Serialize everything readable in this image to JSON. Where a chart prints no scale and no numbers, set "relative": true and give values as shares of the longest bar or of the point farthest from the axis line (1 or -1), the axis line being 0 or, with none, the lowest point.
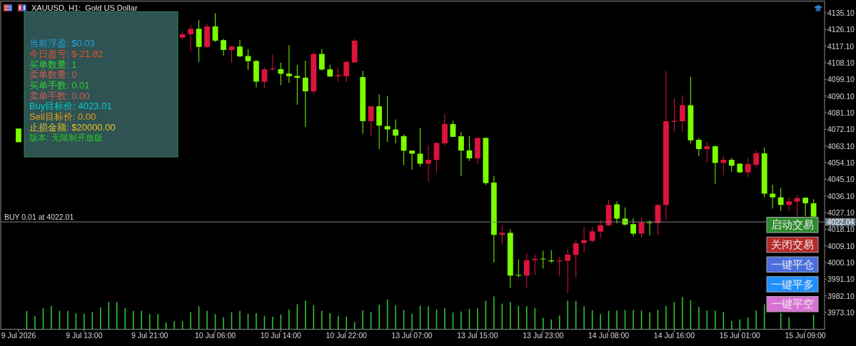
{
  "chart_data": [
    {
      "type": "candlestick",
      "title": "XAUUSD, H1:  Gold US Dollar",
      "categories": [
        "9 Jul 2026",
        null,
        null,
        null,
        null,
        null,
        null,
        null,
        "9 Jul 13:00",
        null,
        null,
        null,
        null,
        null,
        null,
        null,
        "9 Jul 21:00",
        null,
        null,
        null,
        null,
        null,
        null,
        null,
        "10 Jul 06:00",
        null,
        null,
        null,
        null,
        null,
        null,
        null,
        "10 Jul 14:00",
        null,
        null,
        null,
        null,
        null,
        null,
        null,
        "10 Jul 22:00",
        null,
        null,
        null,
        null,
        null,
        null,
        null,
        "13 Jul 07:00",
        null,
        null,
        null,
        null,
        null,
        null,
        null,
        "13 Jul 15:00",
        null,
        null,
        null,
        null,
        null,
        null,
        null,
        "13 Jul 23:00",
        null,
        null,
        null,
        null,
        null,
        null,
        null,
        "14 Jul 08:00",
        null,
        null,
        null,
        null,
        null,
        null,
        null,
        "14 Jul 16:00",
        null,
        null,
        null,
        null,
        null,
        null,
        null,
        "15 Jul 01:00",
        null,
        null,
        null,
        null,
        null,
        null,
        null,
        "15 Jul 09:00",
        null
      ],
      "ohlc": [
        [
          4065.1,
          4072.5,
          4065.1,
          4072.5
        ],
        null,
        null,
        null,
        null,
        null,
        null,
        null,
        null,
        null,
        null,
        null,
        null,
        null,
        null,
        null,
        null,
        null,
        null,
        null,
        [
          4123.5,
          4125.1,
          4121.0,
          4121.7
        ],
        [
          4126.4,
          4128.6,
          4114.2,
          4123.5
        ],
        [
          4116.6,
          4131.2,
          4108.5,
          4126.4
        ],
        [
          4127.7,
          4129.3,
          4115.8,
          4116.6
        ],
        [
          4120.0,
          4134.8,
          4119.3,
          4127.7
        ],
        [
          4115.0,
          4121.0,
          4111.9,
          4120.3
        ],
        [
          4116.8,
          4117.2,
          4108.1,
          4115.0
        ],
        [
          4111.5,
          4120.3,
          4111.0,
          4116.8
        ],
        [
          4108.9,
          4115.4,
          4104.2,
          4111.7
        ],
        [
          4097.9,
          4109.5,
          4094.7,
          4109.0
        ],
        [
          4104.5,
          4105.6,
          4094.1,
          4097.8
        ],
        [
          4104.9,
          4112.6,
          4104.1,
          4104.4
        ],
        [
          4102.1,
          4108.1,
          4095.9,
          4104.6
        ],
        [
          4100.8,
          4117.5,
          4097.2,
          4102.2
        ],
        [
          4099.9,
          4106.8,
          4085.4,
          4100.9
        ],
        [
          4092.6,
          4109.1,
          4073.4,
          4100.0
        ],
        [
          4112.8,
          4113.6,
          4091.2,
          4092.6
        ],
        [
          4104.4,
          4115.5,
          4103.8,
          4112.8
        ],
        [
          4100.6,
          4106.9,
          4100.5,
          4104.5
        ],
        [
          4101.4,
          4105.3,
          4097.8,
          4100.8
        ],
        [
          4108.5,
          4109.4,
          4097.6,
          4100.8
        ],
        [
          4120.0,
          4121.0,
          4108.1,
          4108.2
        ],
        [
          4076.5,
          4103.7,
          4069.7,
          4100.3
        ],
        [
          4084.5,
          4084.5,
          4068.4,
          4076.5
        ],
        [
          4074.1,
          4091.0,
          4061.3,
          4084.5
        ],
        [
          4072.0,
          4089.9,
          4065.2,
          4073.8
        ],
        [
          4068.7,
          4077.4,
          4064.5,
          4072.0
        ],
        [
          4060.5,
          4069.2,
          4052.7,
          4068.4
        ],
        [
          4058.9,
          4060.6,
          4050.1,
          4060.6
        ],
        [
          4053.5,
          4072.9,
          4052.0,
          4058.9
        ],
        [
          4055.6,
          4063.5,
          4043.7,
          4053.5
        ],
        [
          4064.7,
          4065.1,
          4048.8,
          4055.5
        ],
        [
          4074.9,
          4080.6,
          4063.2,
          4064.5
        ],
        [
          4068.0,
          4076.6,
          4068.0,
          4074.9
        ],
        [
          4060.6,
          4070.6,
          4046.7,
          4068.3
        ],
        [
          4056.4,
          4068.3,
          4055.0,
          4060.7
        ],
        [
          4067.4,
          4067.7,
          4053.3,
          4056.4
        ],
        [
          4043.0,
          4067.7,
          4042.0,
          4067.4
        ],
        [
          4015.0,
          4046.9,
          4000.0,
          4043.3
        ],
        [
          4016.1,
          4020.3,
          4009.9,
          4015.0
        ],
        [
          3993.0,
          4018.0,
          3986.3,
          4016.1
        ],
        [
          3993.0,
          4001.8,
          3992.0,
          3993.4
        ],
        [
          4001.3,
          4005.2,
          3986.6,
          3993.0
        ],
        [
          4002.0,
          4004.5,
          3993.4,
          4001.3
        ],
        [
          4002.0,
          4006.5,
          3996.8,
          4002.2
        ],
        [
          4000.7,
          4006.7,
          3999.8,
          4001.2
        ],
        [
          4001.2,
          4003.2,
          3992.6,
          4000.7
        ],
        [
          4004.3,
          4007.4,
          3983.4,
          4001.0
        ],
        [
          4010.4,
          4012.0,
          3992.1,
          4004.2
        ],
        [
          4012.2,
          4019.3,
          4005.5,
          4010.6
        ],
        [
          4016.9,
          4019.2,
          4010.9,
          4011.8
        ],
        [
          4020.2,
          4023.1,
          4013.3,
          4016.7
        ],
        [
          4031.2,
          4034.0,
          4019.7,
          4020.2
        ],
        [
          4023.8,
          4033.1,
          4021.2,
          4031.5
        ],
        [
          4020.6,
          4029.8,
          4019.9,
          4023.8
        ],
        [
          4015.7,
          4024.0,
          4014.2,
          4020.8
        ],
        [
          4021.7,
          4024.4,
          4013.5,
          4015.7
        ],
        [
          4021.6,
          4022.9,
          4014.8,
          4021.8
        ],
        [
          4031.2,
          4031.7,
          4015.0,
          4021.4
        ],
        [
          4076.4,
          4103.6,
          4023.1,
          4031.2
        ],
        [
          4076.6,
          4088.8,
          4070.9,
          4076.1
        ],
        [
          4085.1,
          4090.5,
          4070.6,
          4076.4
        ],
        [
          4066.1,
          4100.5,
          4064.5,
          4085.1
        ],
        [
          4061.4,
          4067.4,
          4057.5,
          4066.4
        ],
        [
          4062.9,
          4065.2,
          4054.2,
          4061.4
        ],
        [
          4053.9,
          4063.3,
          4042.6,
          4062.9
        ],
        [
          4055.6,
          4057.5,
          4047.3,
          4053.9
        ],
        [
          4052.4,
          4056.5,
          4049.1,
          4055.6
        ],
        [
          4048.8,
          4053.5,
          4048.5,
          4053.5
        ],
        [
          4053.3,
          4056.5,
          4046.2,
          4048.8
        ],
        [
          4059.1,
          4060.7,
          4051.0,
          4052.9
        ],
        [
          4037.3,
          4062.3,
          4035.3,
          4059.1
        ],
        [
          4035.3,
          4042.1,
          4029.2,
          4037.3
        ],
        [
          4031.2,
          4040.5,
          4027.9,
          4035.3
        ],
        [
          4033.1,
          4035.3,
          4027.9,
          4031.2
        ],
        [
          4034.9,
          4036.6,
          4024.9,
          4033.0
        ],
        [
          4032.1,
          4035.3,
          4025.1,
          4035.1
        ],
        [
          4024.9,
          4034.3,
          4024.9,
          4032.1
        ]
      ],
      "colors": [
        "#7cfc00",
        null,
        null,
        null,
        null,
        null,
        null,
        null,
        null,
        null,
        null,
        null,
        null,
        null,
        null,
        null,
        null,
        null,
        null,
        null,
        "#dc143c",
        "#dc143c",
        "#7cfc00",
        "#dc143c",
        "#7cfc00",
        "#7cfc00",
        "#dc143c",
        "#7cfc00",
        "#7cfc00",
        "#7cfc00",
        "#dc143c",
        "#dc143c",
        "#7cfc00",
        "#7cfc00",
        "#7cfc00",
        "#7cfc00",
        "#dc143c",
        "#7cfc00",
        "#7cfc00",
        "#dc143c",
        "#dc143c",
        "#dc143c",
        "#7cfc00",
        "#dc143c",
        "#7cfc00",
        "#7cfc00",
        "#7cfc00",
        "#7cfc00",
        "#7cfc00",
        "#7cfc00",
        "#dc143c",
        "#dc143c",
        "#dc143c",
        "#7cfc00",
        "#7cfc00",
        "#7cfc00",
        "#dc143c",
        "#7cfc00",
        "#7cfc00",
        "#dc143c",
        "#7cfc00",
        "#7cfc00",
        "#dc143c",
        "#dc143c",
        "#7cfc00",
        "#7cfc00",
        "#dc143c",
        "#dc143c",
        "#dc143c",
        "#dc143c",
        "#dc143c",
        "#dc143c",
        "#dc143c",
        "#7cfc00",
        "#7cfc00",
        "#7cfc00",
        "#dc143c",
        "#7cfc00",
        "#dc143c",
        "#dc143c",
        "#dc143c",
        "#dc143c",
        "#7cfc00",
        "#7cfc00",
        "#dc143c",
        "#7cfc00",
        "#dc143c",
        "#7cfc00",
        "#7cfc00",
        "#dc143c",
        "#dc143c",
        "#7cfc00",
        "#7cfc00",
        "#7cfc00",
        "#dc143c",
        "#dc143c",
        "#7cfc00",
        "#7cfc00"
      ],
      "ylim": [
        3964,
        4141.4
      ],
      "yticks": [
        {
          "value": 4135.1,
          "label": "4135.10"
        },
        {
          "value": 4126.1,
          "label": "4126.10"
        },
        {
          "value": 4117.1,
          "label": "4117.10"
        },
        {
          "value": 4108.1,
          "label": "4108.10"
        },
        {
          "value": 4099.1,
          "label": "4099.10"
        },
        {
          "value": 4090.1,
          "label": "4090.10"
        },
        {
          "value": 4081.1,
          "label": "4081.10"
        },
        {
          "value": 4072.1,
          "label": "4072.10"
        },
        {
          "value": 4063.1,
          "label": "4063.10"
        },
        {
          "value": 4054.1,
          "label": "4054.10"
        },
        {
          "value": 4045.1,
          "label": "4045.10"
        },
        {
          "value": 4036.1,
          "label": "4036.10"
        },
        {
          "value": 4027.1,
          "label": "4027.10"
        },
        {
          "value": 4018.1,
          "label": "4018.10"
        },
        {
          "value": 4009.1,
          "label": "4009.10"
        },
        {
          "value": 4000.1,
          "label": "4000.10"
        },
        {
          "value": 3991.1,
          "label": "3991.10"
        },
        {
          "value": 3982.1,
          "label": "3982.10"
        },
        {
          "value": 3973.1,
          "label": "3973.10"
        }
      ],
      "ref_lines": [
        {
          "axis": "y",
          "value": 4022.01,
          "label": "BUY 0.01 at 4022.01",
          "color": "#808080"
        }
      ],
      "annotations": [
        "4022.04"
      ]
    },
    {
      "type": "bar",
      "relative": true,
      "color": "#32cd32",
      "categories": [
        null,
        null,
        null,
        null,
        null,
        null,
        null,
        null,
        null,
        null,
        null,
        null,
        null,
        null,
        null,
        null,
        null,
        null,
        null,
        null,
        null,
        null,
        null,
        null,
        null,
        null,
        null,
        null,
        null,
        null,
        null,
        null,
        null,
        null,
        null,
        null,
        null,
        null,
        null,
        null,
        null,
        null,
        null,
        null,
        null,
        null,
        null,
        null,
        null,
        null,
        null,
        null,
        null,
        null,
        null,
        null,
        null,
        null,
        null,
        null,
        null,
        null,
        null,
        null,
        null,
        null,
        null,
        null,
        null,
        null,
        null,
        null,
        null,
        null,
        null,
        null,
        null,
        null,
        null,
        null,
        null,
        null,
        null,
        null,
        null,
        null,
        null,
        null,
        null,
        null,
        null,
        null,
        null,
        null,
        null,
        null,
        null,
        null
      ],
      "values": [
        null,
        0.56,
        0.4,
        0.64,
        0.71,
        0.56,
        0.56,
        0.49,
        0.47,
        0.52,
        0.67,
        0.83,
        0.83,
        0.64,
        0.56,
        0.56,
        0.46,
        0.46,
        0.21,
        0.25,
        0.24,
        0.52,
        0.7,
        0.56,
        0.46,
        0.36,
        0.52,
        0.56,
        0.47,
        0.49,
        0.41,
        0.38,
        0.45,
        0.6,
        0.76,
        0.87,
        0.73,
        0.56,
        0.49,
        0.41,
        0.38,
        0.22,
        0.58,
        0.53,
        0.75,
        0.91,
        0.73,
        0.59,
        0.47,
        0.71,
        0.7,
        0.6,
        0.64,
        0.51,
        0.54,
        0.62,
        0.64,
        0.87,
        1,
        0.78,
        0.83,
        0.71,
        0.7,
        0.64,
        0.35,
        0.3,
        0.42,
        0.87,
        0.86,
        0.7,
        0.58,
        0.46,
        0.56,
        0.57,
        0.59,
        0.59,
        0.57,
        0.51,
        0.59,
        0.71,
        0.83,
        0.98,
        0.88,
        0.68,
        0.57,
        0.57,
        0.53,
        0.25,
        0.3,
        0.36,
        0.57,
        0.76,
        null,
        0.49,
        0.36,
        null,
        null,
        0.44
      ]
    },
    {
      "type": "other",
      "annotations": [
        "当前浮盈: $0.03",
        "今日盈亏: $-21.82",
        "买单数量: 1",
        "卖单数量: 0",
        "买单手数: 0.01",
        "卖单手数: 0.00",
        "Buy目标价: 4023.01",
        "Sell目标价: 0.00",
        "止损金额: $20000.00",
        "版本: 无限制开放版"
      ]
    },
    {
      "type": "other",
      "annotations": [
        "启动交易",
        "关闭交易",
        "一键平仓",
        "一键平多",
        "一键平空"
      ]
    }
  ]
}
